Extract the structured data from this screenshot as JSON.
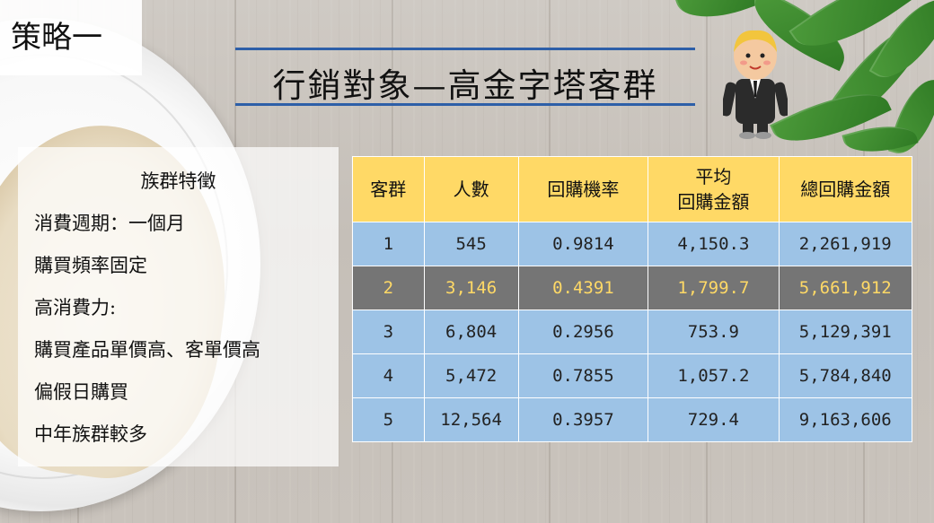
{
  "strategy_label": "策略一",
  "title": "行銷對象—高金字塔客群",
  "info_panel": {
    "heading": "族群特徵",
    "items": [
      "消費週期：一個月",
      "購買頻率固定",
      "高消費力:",
      "購買產品單價高、客單價高",
      "偏假日購買",
      "中年族群較多"
    ]
  },
  "table": {
    "headers": [
      "客群",
      "人數",
      "回購機率",
      "平均",
      "回購金額",
      "總回購金額"
    ],
    "rows": [
      [
        "1",
        "545",
        "0.9814",
        "4,150.3",
        "2,261,919"
      ],
      [
        "2",
        "3,146",
        "0.4391",
        "1,799.7",
        "5,661,912"
      ],
      [
        "3",
        "6,804",
        "0.2956",
        "753.9",
        "5,129,391"
      ],
      [
        "4",
        "5,472",
        "0.7855",
        "1,057.2",
        "5,784,840"
      ],
      [
        "5",
        "12,564",
        "0.3957",
        "729.4",
        "9,163,606"
      ]
    ],
    "highlight_row": 2
  },
  "colors": {
    "header_bg": "#ffd966",
    "row_bg": "#9dc3e6",
    "highlight_bg": "#757575",
    "highlight_text": "#ffd966",
    "title_line": "#2d5fa8"
  },
  "icons": [
    "businessman-icon",
    "bread-plate-image",
    "green-leaves-image"
  ]
}
